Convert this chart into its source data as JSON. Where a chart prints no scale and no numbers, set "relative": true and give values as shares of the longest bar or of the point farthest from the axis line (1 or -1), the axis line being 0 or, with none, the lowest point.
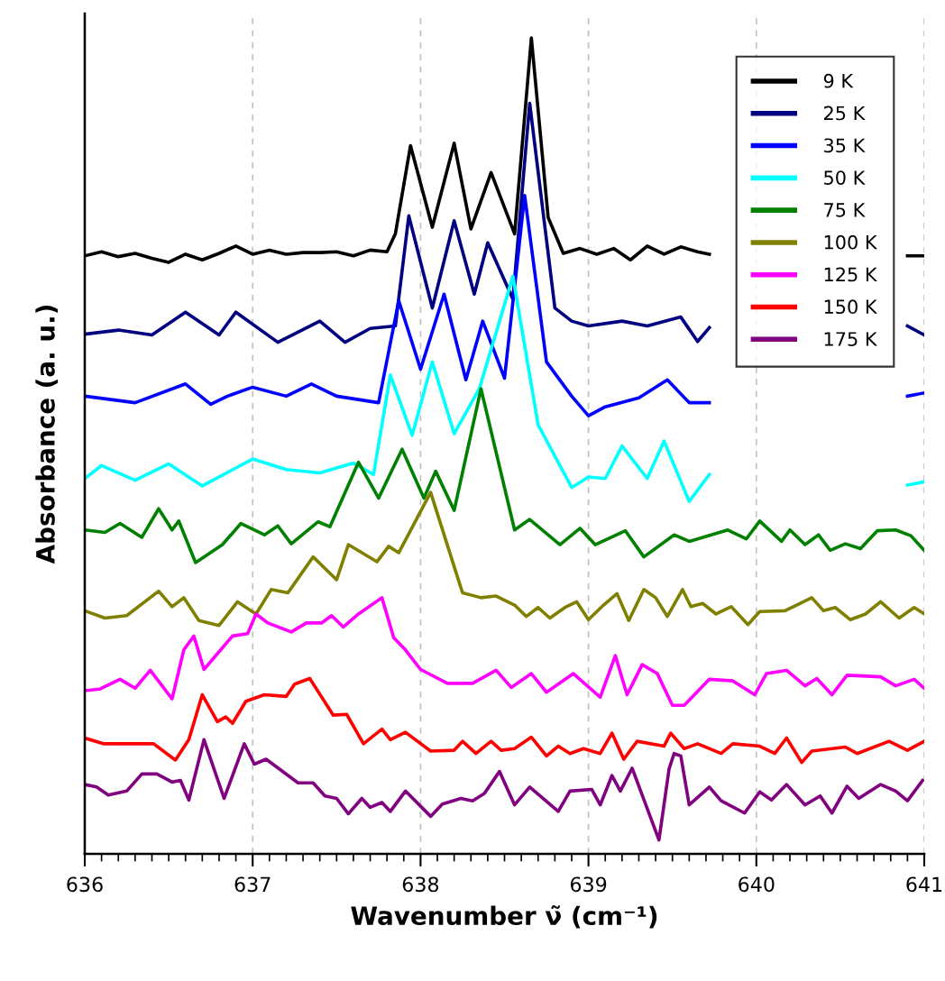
{
  "chart_data": {
    "type": "line",
    "relative": true,
    "xlabel": "Wavenumber ν̃ (cm⁻¹)",
    "ylabel": "Absorbance (a. u.)",
    "xlim": [
      636,
      641
    ],
    "xticks": [
      636,
      637,
      638,
      639,
      640,
      641
    ],
    "grid": "x",
    "legend": "top right",
    "marker": "none",
    "line_style": "solid",
    "series": [
      {
        "name": "9 K",
        "color": "#000000",
        "x": [
          636,
          636.1,
          636.2,
          636.3,
          636.4,
          636.5,
          636.6,
          636.7,
          636.8,
          636.9,
          637.0,
          637.1,
          637.2,
          637.3,
          637.4,
          637.5,
          637.6,
          637.7,
          637.8,
          637.85,
          637.94,
          638.07,
          638.2,
          638.3,
          638.42,
          638.56,
          638.66,
          638.76,
          638.85,
          638.95,
          639.05,
          639.15,
          639.25,
          639.35,
          639.45,
          639.55,
          639.65,
          639.72,
          639.8,
          640.85,
          640.9,
          641
        ],
        "values": [
          0.733,
          0.738,
          0.732,
          0.736,
          0.73,
          0.725,
          0.735,
          0.728,
          0.736,
          0.745,
          0.735,
          0.74,
          0.735,
          0.737,
          0.737,
          0.738,
          0.733,
          0.74,
          0.738,
          0.76,
          0.868,
          0.768,
          0.871,
          0.766,
          0.835,
          0.76,
          1.0,
          0.78,
          0.736,
          0.742,
          0.735,
          0.742,
          0.728,
          0.745,
          0.735,
          0.744,
          0.738,
          0.735,
          null,
          null,
          0.733,
          0.733
        ]
      },
      {
        "name": "25 K",
        "color": "#000080",
        "x": [
          636.0,
          636.2,
          636.4,
          636.6,
          636.8,
          636.9,
          637.15,
          637.4,
          637.55,
          637.7,
          637.85,
          637.93,
          638.07,
          638.2,
          638.32,
          638.4,
          638.55,
          638.65,
          638.8,
          638.9,
          639.0,
          639.2,
          639.35,
          639.55,
          639.65,
          639.72,
          639.8,
          640.85,
          640.9,
          641
        ],
        "values": [
          0.637,
          0.642,
          0.636,
          0.664,
          0.636,
          0.664,
          0.627,
          0.653,
          0.627,
          0.644,
          0.647,
          0.782,
          0.669,
          0.776,
          0.686,
          0.749,
          0.68,
          0.92,
          0.669,
          0.653,
          0.647,
          0.653,
          0.647,
          0.658,
          0.628,
          0.645,
          null,
          null,
          0.647,
          0.636
        ]
      },
      {
        "name": "35 K",
        "color": "#0000ff",
        "x": [
          636.0,
          636.3,
          636.6,
          636.75,
          636.85,
          637.0,
          637.2,
          637.35,
          637.5,
          637.75,
          637.87,
          638.0,
          638.14,
          638.27,
          638.37,
          638.5,
          638.62,
          638.75,
          638.9,
          639.0,
          639.1,
          639.3,
          639.47,
          639.6,
          639.72,
          639.8,
          640.85,
          640.9,
          641
        ],
        "values": [
          0.561,
          0.553,
          0.576,
          0.551,
          0.561,
          0.572,
          0.561,
          0.576,
          0.561,
          0.553,
          0.678,
          0.594,
          0.686,
          0.581,
          0.653,
          0.583,
          0.807,
          0.603,
          0.561,
          0.537,
          0.548,
          0.559,
          0.581,
          0.553,
          0.553,
          null,
          null,
          0.561,
          0.565
        ]
      },
      {
        "name": "50 K",
        "color": "#00ffff",
        "x": [
          636.0,
          636.1,
          636.3,
          636.5,
          636.7,
          636.9,
          637.0,
          637.2,
          637.4,
          637.6,
          637.72,
          637.82,
          637.95,
          638.07,
          638.2,
          638.35,
          638.55,
          638.7,
          638.9,
          639.0,
          639.1,
          639.2,
          639.35,
          639.45,
          639.6,
          639.72,
          639.8,
          640.85,
          640.9,
          641
        ],
        "values": [
          0.46,
          0.476,
          0.458,
          0.478,
          0.451,
          0.473,
          0.484,
          0.471,
          0.467,
          0.479,
          0.465,
          0.587,
          0.513,
          0.603,
          0.515,
          0.57,
          0.708,
          0.526,
          0.449,
          0.462,
          0.46,
          0.5,
          0.46,
          0.506,
          0.432,
          0.465,
          null,
          null,
          0.452,
          0.456
        ]
      },
      {
        "name": "75 K",
        "color": "#008000",
        "x": [
          636.0,
          636.12,
          636.21,
          636.34,
          636.44,
          636.52,
          636.56,
          636.66,
          636.82,
          636.93,
          637.07,
          637.15,
          637.23,
          637.39,
          637.46,
          637.63,
          637.75,
          637.89,
          638.02,
          638.09,
          638.2,
          638.36,
          638.56,
          638.65,
          638.83,
          638.95,
          639.04,
          639.22,
          639.33,
          639.51,
          639.6,
          639.83,
          639.94,
          640.02,
          640.15,
          640.2,
          640.29,
          640.37,
          640.44,
          640.53,
          640.62,
          640.72,
          640.83,
          640.92,
          641.0
        ],
        "values": [
          0.397,
          0.394,
          0.405,
          0.388,
          0.423,
          0.397,
          0.408,
          0.357,
          0.379,
          0.405,
          0.391,
          0.402,
          0.38,
          0.407,
          0.401,
          0.48,
          0.436,
          0.496,
          0.436,
          0.469,
          0.421,
          0.57,
          0.397,
          0.41,
          0.379,
          0.399,
          0.379,
          0.396,
          0.364,
          0.391,
          0.383,
          0.397,
          0.386,
          0.408,
          0.383,
          0.397,
          0.379,
          0.391,
          0.372,
          0.38,
          0.374,
          0.396,
          0.397,
          0.39,
          0.372
        ]
      },
      {
        "name": "100 K",
        "color": "#808000",
        "x": [
          636.0,
          636.12,
          636.25,
          636.44,
          636.52,
          636.59,
          636.68,
          636.8,
          636.91,
          637.02,
          637.11,
          637.21,
          637.36,
          637.5,
          637.57,
          637.74,
          637.81,
          637.87,
          638.06,
          638.25,
          638.36,
          638.45,
          638.56,
          638.63,
          638.7,
          638.77,
          638.86,
          638.93,
          639.0,
          639.09,
          639.17,
          639.24,
          639.33,
          639.4,
          639.47,
          639.56,
          639.61,
          639.68,
          639.76,
          639.85,
          639.95,
          640.02,
          640.17,
          640.24,
          640.33,
          640.4,
          640.47,
          640.56,
          640.65,
          640.74,
          640.85,
          640.94,
          641.0
        ],
        "values": [
          0.298,
          0.289,
          0.292,
          0.322,
          0.303,
          0.314,
          0.286,
          0.28,
          0.309,
          0.294,
          0.324,
          0.32,
          0.364,
          0.336,
          0.379,
          0.358,
          0.377,
          0.369,
          0.443,
          0.32,
          0.314,
          0.316,
          0.305,
          0.291,
          0.302,
          0.289,
          0.302,
          0.309,
          0.287,
          0.305,
          0.319,
          0.286,
          0.324,
          0.314,
          0.291,
          0.324,
          0.303,
          0.307,
          0.294,
          0.303,
          0.281,
          0.297,
          0.298,
          0.305,
          0.314,
          0.298,
          0.302,
          0.287,
          0.294,
          0.309,
          0.289,
          0.302,
          0.294
        ]
      },
      {
        "name": "125 K",
        "color": "#ff00ff",
        "x": [
          636.0,
          636.09,
          636.21,
          636.3,
          636.39,
          636.52,
          636.59,
          636.65,
          636.71,
          636.88,
          636.97,
          637.02,
          637.09,
          637.23,
          637.32,
          637.41,
          637.47,
          637.54,
          637.63,
          637.77,
          637.84,
          637.91,
          638.0,
          638.16,
          638.31,
          638.45,
          638.54,
          638.66,
          638.75,
          638.91,
          639.07,
          639.16,
          639.23,
          639.32,
          639.41,
          639.5,
          639.57,
          639.72,
          639.86,
          639.99,
          640.06,
          640.18,
          640.29,
          640.36,
          640.45,
          640.54,
          640.74,
          640.83,
          640.94,
          641.0
        ],
        "values": [
          0.2,
          0.202,
          0.214,
          0.203,
          0.225,
          0.19,
          0.25,
          0.267,
          0.226,
          0.267,
          0.27,
          0.294,
          0.283,
          0.272,
          0.283,
          0.283,
          0.292,
          0.278,
          0.294,
          0.314,
          0.265,
          0.25,
          0.226,
          0.209,
          0.209,
          0.225,
          0.204,
          0.221,
          0.198,
          0.221,
          0.192,
          0.243,
          0.195,
          0.232,
          0.221,
          0.182,
          0.182,
          0.214,
          0.212,
          0.195,
          0.221,
          0.225,
          0.206,
          0.215,
          0.195,
          0.219,
          0.217,
          0.206,
          0.214,
          0.203
        ]
      },
      {
        "name": "150 K",
        "color": "#ff0000",
        "x": [
          636.0,
          636.11,
          636.41,
          636.54,
          636.62,
          636.7,
          636.79,
          636.84,
          636.88,
          636.96,
          637.07,
          637.2,
          637.25,
          637.34,
          637.48,
          637.56,
          637.66,
          637.77,
          637.82,
          637.91,
          638.06,
          638.2,
          638.25,
          638.33,
          638.42,
          638.48,
          638.56,
          638.66,
          638.75,
          638.82,
          638.89,
          638.97,
          639.07,
          639.14,
          639.21,
          639.29,
          639.45,
          639.49,
          639.57,
          639.65,
          639.79,
          639.86,
          640.02,
          640.11,
          640.18,
          640.27,
          640.33,
          640.53,
          640.6,
          640.79,
          640.9,
          641.0
        ],
        "values": [
          0.142,
          0.135,
          0.135,
          0.115,
          0.14,
          0.195,
          0.162,
          0.168,
          0.16,
          0.187,
          0.195,
          0.193,
          0.208,
          0.215,
          0.17,
          0.171,
          0.135,
          0.153,
          0.14,
          0.149,
          0.126,
          0.127,
          0.138,
          0.123,
          0.138,
          0.127,
          0.129,
          0.143,
          0.12,
          0.132,
          0.123,
          0.129,
          0.123,
          0.148,
          0.116,
          0.138,
          0.132,
          0.148,
          0.129,
          0.135,
          0.123,
          0.135,
          0.132,
          0.123,
          0.142,
          0.112,
          0.126,
          0.131,
          0.123,
          0.138,
          0.127,
          0.138
        ]
      },
      {
        "name": "175 K",
        "color": "#800080",
        "x": [
          636.0,
          636.07,
          636.14,
          636.25,
          636.34,
          636.43,
          636.52,
          636.57,
          636.62,
          636.71,
          636.83,
          636.95,
          637.01,
          637.08,
          637.14,
          637.27,
          637.36,
          637.43,
          637.5,
          637.57,
          637.65,
          637.7,
          637.77,
          637.82,
          637.91,
          638.06,
          638.13,
          638.24,
          638.31,
          638.38,
          638.47,
          638.56,
          638.65,
          638.82,
          638.89,
          639.02,
          639.07,
          639.14,
          639.19,
          639.26,
          639.42,
          639.48,
          639.51,
          639.55,
          639.6,
          639.72,
          639.79,
          639.93,
          640.02,
          640.09,
          640.18,
          640.29,
          640.38,
          640.45,
          640.54,
          640.61,
          640.74,
          640.83,
          640.9,
          640.99
        ],
        "values": [
          0.085,
          0.082,
          0.072,
          0.077,
          0.098,
          0.098,
          0.088,
          0.09,
          0.066,
          0.14,
          0.068,
          0.135,
          0.11,
          0.116,
          0.107,
          0.087,
          0.087,
          0.071,
          0.068,
          0.049,
          0.068,
          0.057,
          0.063,
          0.052,
          0.077,
          0.046,
          0.061,
          0.068,
          0.065,
          0.074,
          0.101,
          0.06,
          0.082,
          0.052,
          0.077,
          0.079,
          0.06,
          0.096,
          0.077,
          0.105,
          0.017,
          0.104,
          0.123,
          0.12,
          0.06,
          0.082,
          0.065,
          0.05,
          0.076,
          0.066,
          0.085,
          0.06,
          0.071,
          0.05,
          0.083,
          0.068,
          0.085,
          0.077,
          0.065,
          0.09
        ]
      }
    ]
  }
}
